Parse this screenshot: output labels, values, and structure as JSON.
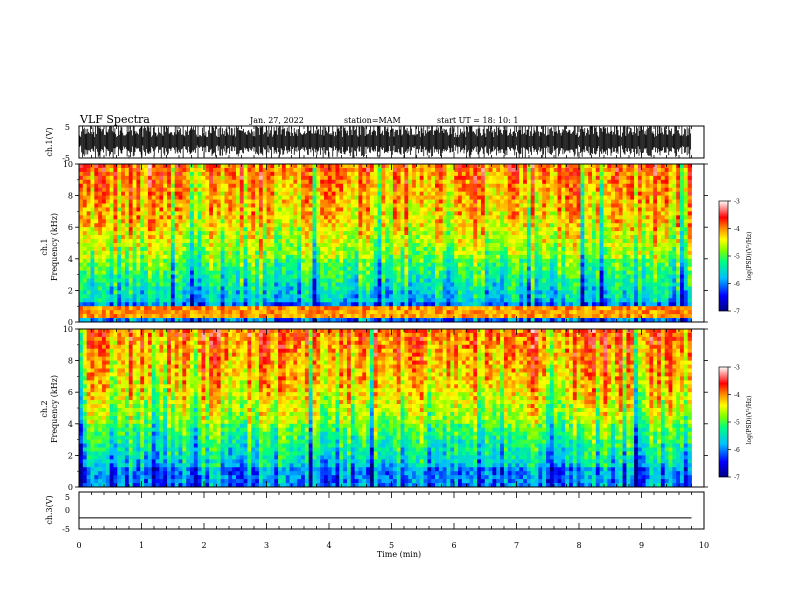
{
  "header": {
    "title": "VLF Spectra",
    "date": "Jan. 27, 2022",
    "station": "station=MAM",
    "start": "start  UT =   18: 10: 1"
  },
  "chart_data": [
    {
      "type": "line",
      "name": "ch1-waveform",
      "ylabel": "ch.1(V)",
      "ylim": [
        -5,
        5
      ],
      "yticks": [
        "5",
        "-5"
      ],
      "description_of_signal": "dense black impulsive waveform spanning roughly -5 to 5 V",
      "xlim": [
        0,
        10
      ],
      "data_end_min": 9.8
    },
    {
      "type": "heatmap",
      "name": "ch1-spectrogram",
      "ylabel": "ch.1\nFrequency (kHz)",
      "ylabel_line1": "ch.1",
      "ylabel_line2": "Frequency (kHz)",
      "ylim": [
        0,
        10
      ],
      "yticks": [
        "0",
        "2",
        "4",
        "6",
        "8",
        "10"
      ],
      "xlim": [
        0,
        10
      ],
      "data_end_min": 9.8,
      "colorbar": {
        "label": "log(PSD)(V²/Hz)",
        "range": [
          -7,
          -3
        ],
        "ticks": [
          "-3",
          "-4",
          "-5",
          "-6",
          "-7"
        ]
      }
    },
    {
      "type": "heatmap",
      "name": "ch2-spectrogram",
      "ylabel_line1": "ch.2",
      "ylabel_line2": "Frequency (kHz)",
      "ylim": [
        0,
        10
      ],
      "yticks": [
        "0",
        "2",
        "4",
        "6",
        "8",
        "10"
      ],
      "xlim": [
        0,
        10
      ],
      "data_end_min": 9.8,
      "colorbar": {
        "label": "log(PSD)(V²/Hz)",
        "range": [
          -7,
          -3
        ],
        "ticks": [
          "-3",
          "-4",
          "-5",
          "-6",
          "-7"
        ]
      }
    },
    {
      "type": "line",
      "name": "ch3-waveform",
      "ylabel": "ch.3(V)",
      "ylim": [
        -5,
        5
      ],
      "yticks": [
        "5",
        "0",
        "-5"
      ],
      "x": [
        0,
        9.8
      ],
      "y": [
        -2,
        -2
      ],
      "xlim": [
        0,
        10
      ]
    }
  ],
  "xaxis": {
    "label": "Time  (min)",
    "ticks": [
      "0",
      "1",
      "2",
      "3",
      "4",
      "5",
      "6",
      "7",
      "8",
      "9",
      "10"
    ]
  },
  "colors": {
    "colormap": [
      "#00008b",
      "#0000ff",
      "#00bfff",
      "#00ff80",
      "#7fff00",
      "#ffff00",
      "#ffa500",
      "#ff2000",
      "#ffffff"
    ]
  }
}
